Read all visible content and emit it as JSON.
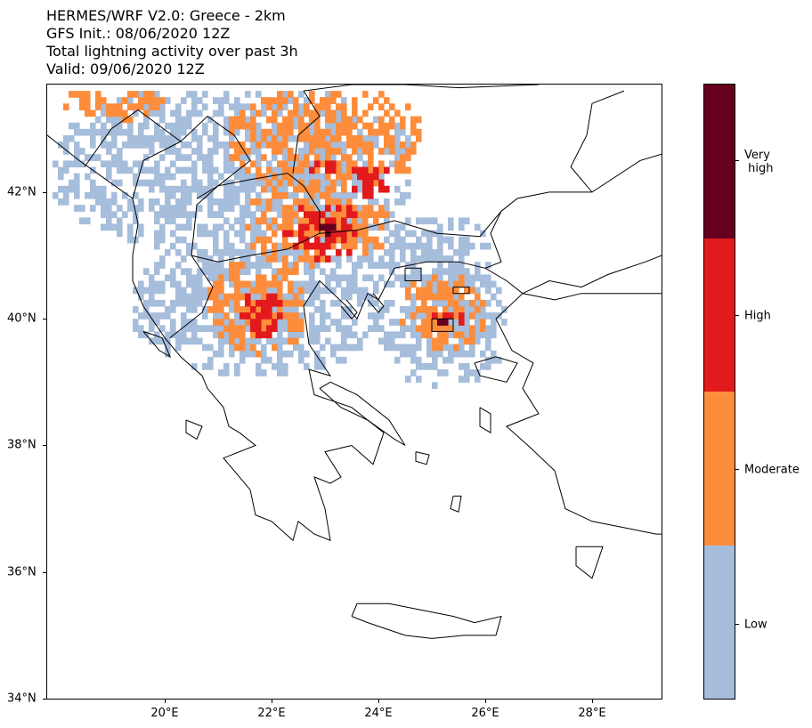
{
  "title": {
    "line1": "HERMES/WRF V2.0: Greece - 2km",
    "line2": "GFS Init.: 08/06/2020 12Z",
    "line3": "Total lightning activity over past 3h",
    "line4": "Valid: 09/06/2020 12Z"
  },
  "map": {
    "lon_range": [
      17.8,
      29.3
    ],
    "lat_range": [
      34.0,
      43.7
    ],
    "lat_ticks": [
      {
        "value": 34,
        "label": "34°N"
      },
      {
        "value": 36,
        "label": "36°N"
      },
      {
        "value": 38,
        "label": "38°N"
      },
      {
        "value": 40,
        "label": "40°N"
      },
      {
        "value": 42,
        "label": "42°N"
      }
    ],
    "lon_ticks": [
      {
        "value": 20,
        "label": "20°E"
      },
      {
        "value": 22,
        "label": "22°E"
      },
      {
        "value": 24,
        "label": "24°E"
      },
      {
        "value": 26,
        "label": "26°E"
      },
      {
        "value": 28,
        "label": "28°E"
      }
    ],
    "coastline_color": "#000000"
  },
  "colorbar": {
    "levels": [
      {
        "label": "Very\n high",
        "color": "#67001f"
      },
      {
        "label": "High",
        "color": "#e31a1c"
      },
      {
        "label": "Moderate",
        "color": "#fd8d3c"
      },
      {
        "label": "Low",
        "color": "#a6bddb"
      }
    ]
  },
  "lightning": {
    "regions": [
      {
        "level": "Low",
        "lon": [
          17.9,
          24.6
        ],
        "lat": [
          41.0,
          43.6
        ]
      },
      {
        "level": "Low",
        "lon": [
          19.4,
          24.0
        ],
        "lat": [
          39.1,
          41.2
        ]
      },
      {
        "level": "Low",
        "lon": [
          23.6,
          26.1
        ],
        "lat": [
          40.4,
          41.6
        ]
      },
      {
        "level": "Low",
        "lon": [
          24.0,
          26.4
        ],
        "lat": [
          38.9,
          40.8
        ]
      },
      {
        "level": "Moderate",
        "lon": [
          18.0,
          20.0
        ],
        "lat": [
          43.1,
          43.6
        ]
      },
      {
        "level": "Moderate",
        "lon": [
          21.2,
          24.8
        ],
        "lat": [
          42.0,
          43.6
        ]
      },
      {
        "level": "Moderate",
        "lon": [
          21.5,
          23.6
        ],
        "lat": [
          40.8,
          42.2
        ]
      },
      {
        "level": "Moderate",
        "lon": [
          20.8,
          22.6
        ],
        "lat": [
          39.4,
          40.9
        ]
      },
      {
        "level": "Moderate",
        "lon": [
          24.4,
          26.0
        ],
        "lat": [
          39.5,
          40.7
        ]
      },
      {
        "level": "Moderate",
        "lon": [
          23.0,
          24.2
        ],
        "lat": [
          41.0,
          41.8
        ]
      },
      {
        "level": "High",
        "lon": [
          23.4,
          24.2
        ],
        "lat": [
          41.9,
          42.4
        ]
      },
      {
        "level": "High",
        "lon": [
          22.2,
          23.6
        ],
        "lat": [
          40.9,
          41.8
        ]
      },
      {
        "level": "High",
        "lon": [
          21.4,
          22.2
        ],
        "lat": [
          39.6,
          40.4
        ]
      },
      {
        "level": "High",
        "lon": [
          24.8,
          25.6
        ],
        "lat": [
          39.8,
          40.1
        ]
      },
      {
        "level": "High",
        "lon": [
          22.6,
          23.2
        ],
        "lat": [
          42.2,
          42.5
        ]
      },
      {
        "level": "Very high",
        "lon": [
          22.9,
          23.2
        ],
        "lat": [
          41.2,
          41.5
        ]
      },
      {
        "level": "Very high",
        "lon": [
          25.0,
          25.3
        ],
        "lat": [
          39.9,
          40.0
        ]
      },
      {
        "level": "Very high",
        "lon": [
          23.6,
          23.9
        ],
        "lat": [
          42.1,
          42.3
        ]
      }
    ]
  }
}
